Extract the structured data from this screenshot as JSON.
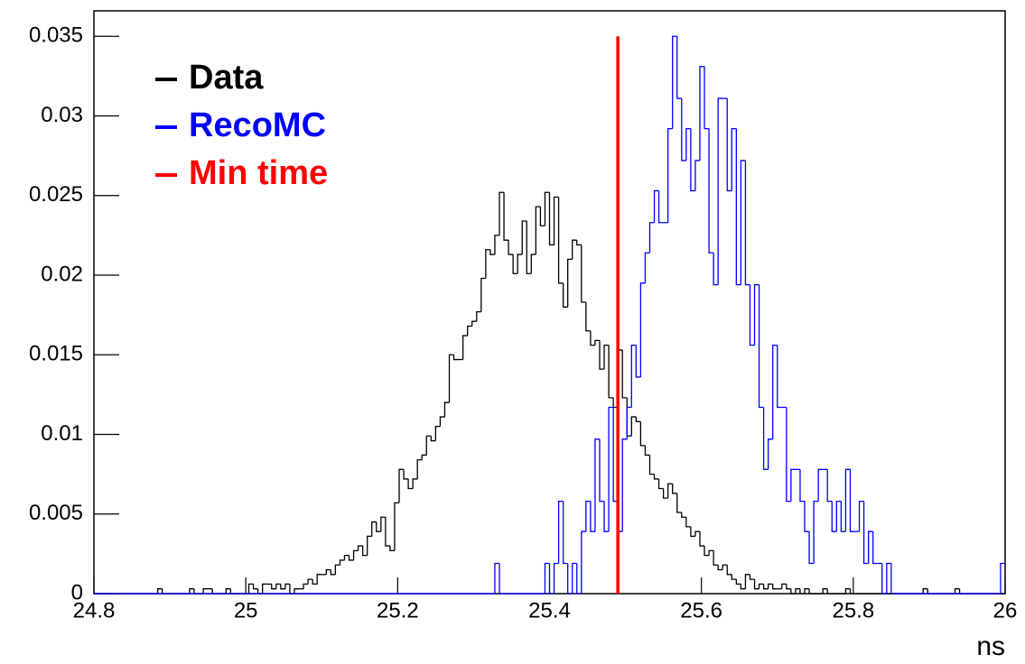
{
  "chart_data": {
    "type": "histogram",
    "x_label": "ns",
    "bins": [
      24.8,
      24.806,
      24.812,
      24.818,
      24.824,
      24.83,
      24.836,
      24.842,
      24.848,
      24.854,
      24.86,
      24.866,
      24.872,
      24.878,
      24.884,
      24.89,
      24.896,
      24.902,
      24.908,
      24.914,
      24.92,
      24.926,
      24.932,
      24.938,
      24.944,
      24.95,
      24.956,
      24.962,
      24.968,
      24.974,
      24.98,
      24.986,
      24.992,
      24.998,
      25.004,
      25.01,
      25.016,
      25.022,
      25.028,
      25.034,
      25.04,
      25.046,
      25.052,
      25.058,
      25.064,
      25.07,
      25.076,
      25.082,
      25.088,
      25.094,
      25.1,
      25.106,
      25.112,
      25.118,
      25.124,
      25.13,
      25.136,
      25.142,
      25.148,
      25.154,
      25.16,
      25.166,
      25.172,
      25.178,
      25.184,
      25.19,
      25.196,
      25.202,
      25.208,
      25.214,
      25.22,
      25.226,
      25.232,
      25.238,
      25.244,
      25.25,
      25.256,
      25.262,
      25.268,
      25.274,
      25.28,
      25.286,
      25.292,
      25.298,
      25.304,
      25.31,
      25.316,
      25.322,
      25.328,
      25.334,
      25.34,
      25.346,
      25.352,
      25.358,
      25.364,
      25.37,
      25.376,
      25.382,
      25.388,
      25.394,
      25.4,
      25.406,
      25.412,
      25.418,
      25.424,
      25.43,
      25.436,
      25.442,
      25.448,
      25.454,
      25.46,
      25.466,
      25.472,
      25.478,
      25.484,
      25.49,
      25.496,
      25.502,
      25.508,
      25.514,
      25.52,
      25.526,
      25.532,
      25.538,
      25.544,
      25.55,
      25.556,
      25.562,
      25.568,
      25.574,
      25.58,
      25.586,
      25.592,
      25.598,
      25.604,
      25.61,
      25.616,
      25.622,
      25.628,
      25.634,
      25.64,
      25.646,
      25.652,
      25.658,
      25.664,
      25.67,
      25.676,
      25.682,
      25.688,
      25.694,
      25.7,
      25.706,
      25.712,
      25.718,
      25.724,
      25.73,
      25.736,
      25.742,
      25.748,
      25.754,
      25.76,
      25.766,
      25.772,
      25.778,
      25.784,
      25.79,
      25.796,
      25.802,
      25.808,
      25.814,
      25.82,
      25.826,
      25.832,
      25.838,
      25.844,
      25.85,
      25.856,
      25.862,
      25.868,
      25.874,
      25.88,
      25.886,
      25.892,
      25.898,
      25.904,
      25.91,
      25.916,
      25.922,
      25.928,
      25.934,
      25.94,
      25.946,
      25.952,
      25.958,
      25.964,
      25.97,
      25.976,
      25.982,
      25.988,
      25.994,
      26
    ],
    "series": [
      {
        "name": "Data",
        "color": "#000000",
        "values": [
          0,
          0,
          0,
          0,
          0,
          0,
          0,
          0,
          0,
          0,
          0,
          0,
          0,
          0,
          0.0003,
          0,
          0,
          0,
          0,
          0,
          0,
          0.0003,
          0,
          0,
          0.0003,
          0.0003,
          0,
          0,
          0,
          0.0003,
          0,
          0,
          0,
          0,
          0.0006,
          0.0003,
          0,
          0.0006,
          0.0006,
          0.0003,
          0.0006,
          0.0003,
          0.0006,
          0,
          0.0003,
          0.0003,
          0.0006,
          0.0009,
          0.0006,
          0.0012,
          0.0012,
          0.0015,
          0.0012,
          0.0018,
          0.0021,
          0.0024,
          0.0021,
          0.0027,
          0.003,
          0.0024,
          0.0036,
          0.0045,
          0.0039,
          0.0048,
          0.003,
          0.0027,
          0.0057,
          0.0078,
          0.0072,
          0.0066,
          0.0072,
          0.0084,
          0.0087,
          0.0099,
          0.0096,
          0.0105,
          0.0111,
          0.012,
          0.015,
          0.0147,
          0.0147,
          0.0162,
          0.0168,
          0.0171,
          0.0177,
          0.0198,
          0.0216,
          0.0213,
          0.0225,
          0.0252,
          0.0222,
          0.0213,
          0.0201,
          0.0213,
          0.0234,
          0.0201,
          0.0213,
          0.0243,
          0.0231,
          0.0252,
          0.0219,
          0.0249,
          0.0195,
          0.018,
          0.021,
          0.0222,
          0.0219,
          0.0183,
          0.0165,
          0.0156,
          0.0159,
          0.0141,
          0.0156,
          0.0123,
          0.0117,
          0.0153,
          0.0123,
          0.0099,
          0.0111,
          0.0108,
          0.0093,
          0.0087,
          0.0075,
          0.0072,
          0.0066,
          0.006,
          0.0069,
          0.0063,
          0.0051,
          0.0048,
          0.0042,
          0.0036,
          0.0039,
          0.003,
          0.0024,
          0.0027,
          0.0018,
          0.0015,
          0.0018,
          0.0012,
          0.0009,
          0.0006,
          0.0003,
          0.0012,
          0.0009,
          0.0003,
          0.0006,
          0.0003,
          0.0006,
          0.0003,
          0.0003,
          0.0006,
          0.0003,
          0,
          0.0003,
          0,
          0.0003,
          0,
          0,
          0,
          0.0003,
          0,
          0,
          0,
          0,
          0.0003,
          0,
          0,
          0,
          0,
          0,
          0,
          0,
          0,
          0,
          0,
          0,
          0,
          0,
          0,
          0,
          0,
          0.0003,
          0,
          0,
          0,
          0,
          0,
          0,
          0.0003,
          0,
          0,
          0,
          0,
          0,
          0,
          0,
          0,
          0,
          0
        ]
      },
      {
        "name": "RecoMC",
        "color": "#0000ff",
        "values": [
          0,
          0,
          0,
          0,
          0,
          0,
          0,
          0,
          0,
          0,
          0,
          0,
          0,
          0,
          0,
          0,
          0,
          0,
          0,
          0,
          0,
          0,
          0,
          0,
          0,
          0,
          0,
          0,
          0,
          0,
          0,
          0,
          0,
          0,
          0,
          0,
          0,
          0,
          0,
          0,
          0,
          0,
          0,
          0,
          0,
          0,
          0,
          0,
          0,
          0,
          0,
          0,
          0,
          0,
          0,
          0,
          0,
          0,
          0,
          0,
          0,
          0,
          0,
          0,
          0,
          0,
          0,
          0,
          0,
          0,
          0,
          0,
          0,
          0,
          0,
          0,
          0,
          0,
          0,
          0,
          0,
          0,
          0,
          0,
          0,
          0,
          0,
          0,
          0.0019,
          0,
          0,
          0,
          0,
          0,
          0,
          0,
          0,
          0,
          0,
          0.0019,
          0,
          0.0019,
          0.0058,
          0.0019,
          0,
          0.0019,
          0,
          0.0039,
          0.0058,
          0.0039,
          0.0097,
          0.0058,
          0.0039,
          0.0117,
          0.0058,
          0.0039,
          0.0097,
          0.0117,
          0.0156,
          0.0136,
          0.0195,
          0.0214,
          0.0233,
          0.0253,
          0.0233,
          0.0233,
          0.0292,
          0.035,
          0.0311,
          0.0272,
          0.0292,
          0.0253,
          0.0272,
          0.0331,
          0.0292,
          0.0214,
          0.0194,
          0.0311,
          0.0311,
          0.0253,
          0.0292,
          0.0194,
          0.0272,
          0.0194,
          0.0156,
          0.0194,
          0.0117,
          0.0078,
          0.0097,
          0.0156,
          0.0117,
          0.0117,
          0.0058,
          0.0078,
          0.0078,
          0.0058,
          0.0039,
          0.0019,
          0.0058,
          0.0078,
          0.0078,
          0.0058,
          0.0039,
          0.0058,
          0.0039,
          0.0078,
          0.0039,
          0.0039,
          0.0058,
          0.0019,
          0.0039,
          0.0019,
          0.0019,
          0,
          0.0019,
          0,
          0,
          0,
          0,
          0,
          0,
          0,
          0,
          0,
          0,
          0,
          0,
          0,
          0,
          0,
          0,
          0,
          0,
          0,
          0,
          0,
          0,
          0,
          0,
          0.0019
        ]
      }
    ],
    "vline": {
      "name": "Min time",
      "color": "#ff0000",
      "x": 25.49,
      "ymax": 0.035
    },
    "xlim": [
      24.8,
      26
    ],
    "xticks": [
      24.8,
      25,
      25.2,
      25.4,
      25.6,
      25.8,
      26
    ],
    "ylim": [
      0,
      0.0366
    ],
    "yticks": [
      0,
      0.005,
      0.01,
      0.015,
      0.02,
      0.025,
      0.03,
      0.035
    ]
  }
}
